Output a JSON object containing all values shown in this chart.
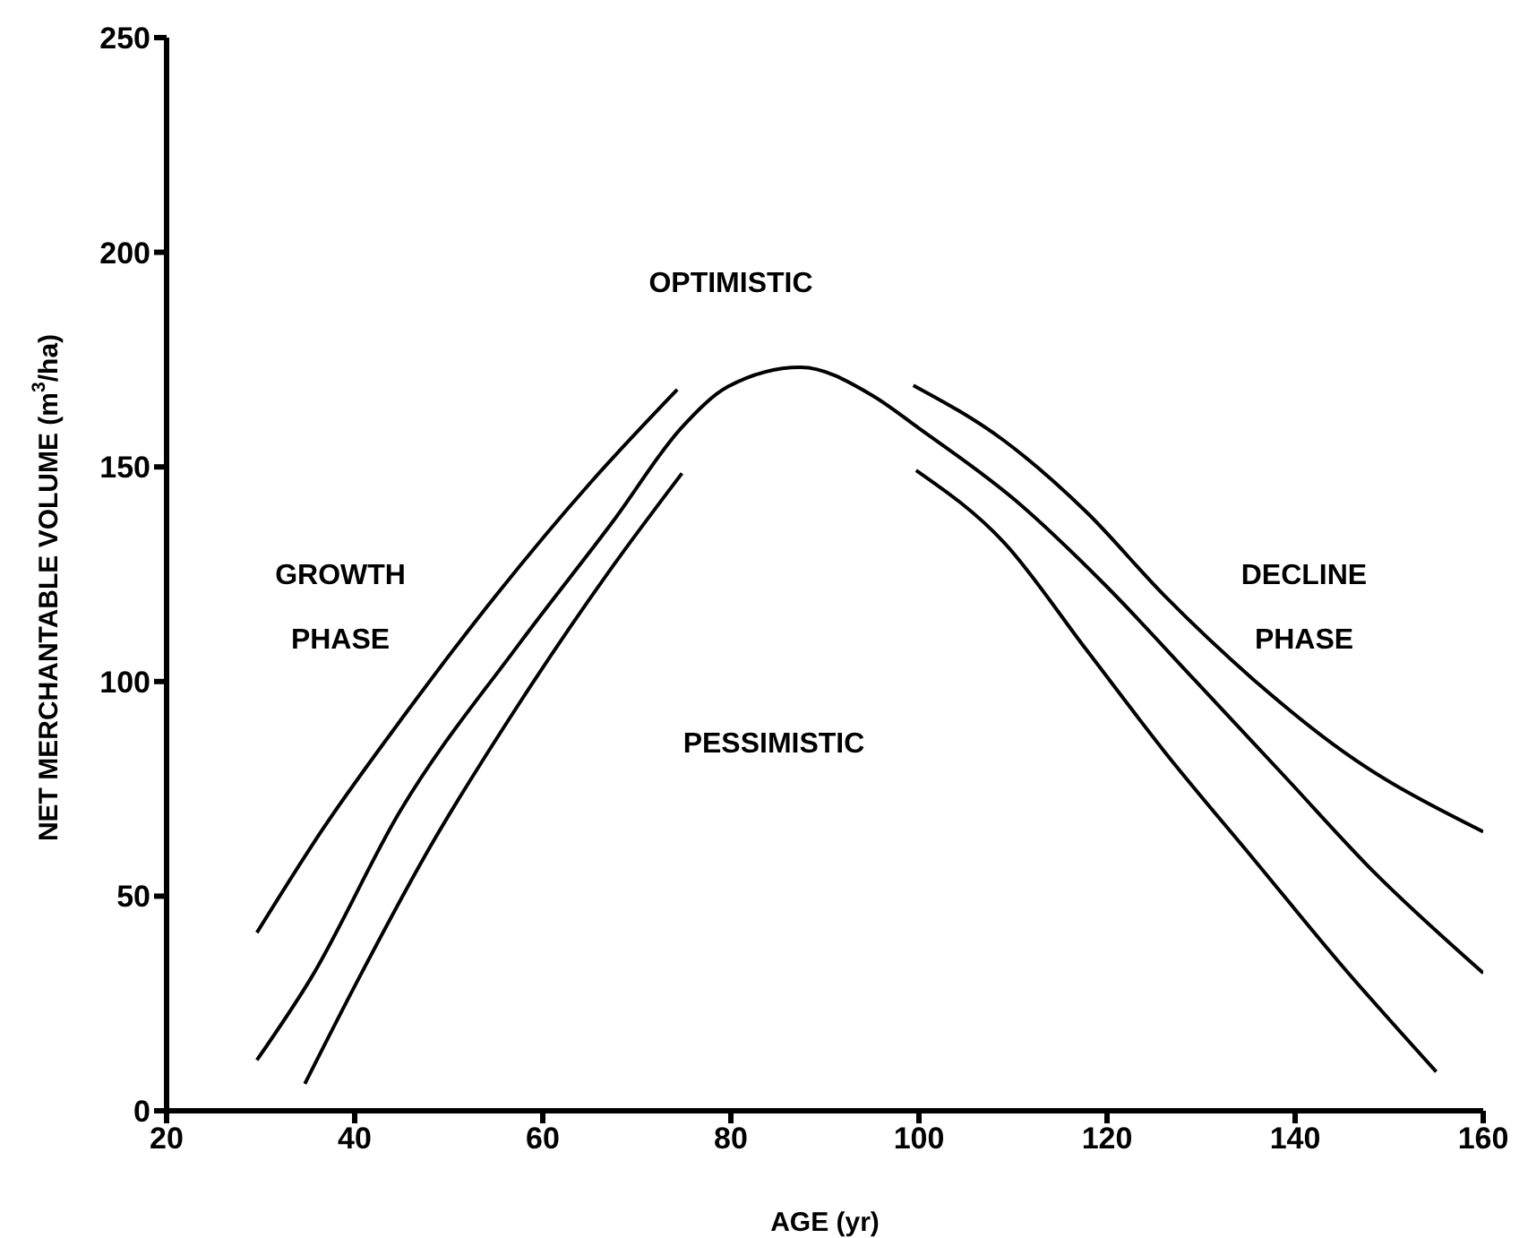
{
  "chart_data": {
    "type": "line",
    "xlabel": "AGE (yr)",
    "ylabel": "NET MERCHANTABLE VOLUME (m$^{3}$/ha)",
    "xlim": [
      20,
      160
    ],
    "xticks": [
      20,
      40,
      60,
      80,
      100,
      120,
      140,
      160
    ],
    "ylim": [
      0,
      250
    ],
    "yticks": [
      0,
      50,
      100,
      150,
      200,
      250
    ],
    "grid": false,
    "legend": false,
    "marker": "none",
    "line_style": "solid",
    "annotations": [
      "OPTIMISTIC",
      "PESSIMISTIC",
      "GROWTH PHASE",
      "DECLINE PHASE"
    ],
    "series": [
      {
        "color": "#000000",
        "x": [
          29.6,
          36.6,
          45.5,
          55,
          65.1,
          74.3
        ],
        "values": [
          41.5,
          65.6,
          92.8,
          120,
          146.4,
          168
        ]
      },
      {
        "color": "#000000",
        "x": [
          29.6,
          35.3,
          44.8,
          57.5,
          67.7,
          74.7,
          79.7,
          87.4,
          95,
          100,
          110.2,
          119.7,
          129.3,
          138.8,
          148.3,
          160
        ],
        "values": [
          11.8,
          30.7,
          69.7,
          108.8,
          138,
          159,
          168.7,
          173.2,
          166.7,
          159,
          142.3,
          122.7,
          100.4,
          78.1,
          55.8,
          32.1
        ]
      },
      {
        "color": "#000000",
        "x": [
          34.7,
          40.4,
          48,
          57.5,
          67,
          74.8
        ],
        "values": [
          6.3,
          30.7,
          61.4,
          94.9,
          125.5,
          148.5
        ]
      },
      {
        "color": "#000000",
        "x": [
          99.4,
          109,
          117.8,
          126.1,
          135.6,
          145.1,
          160
        ],
        "values": [
          169,
          156.2,
          139.5,
          120,
          100.4,
          83.7,
          65
        ]
      },
      {
        "color": "#000000",
        "x": [
          99.7,
          109,
          117.8,
          126.1,
          135.6,
          145.1,
          155
        ],
        "values": [
          149.2,
          132.5,
          107.4,
          83.7,
          58.6,
          33.5,
          9.1
        ]
      }
    ]
  }
}
